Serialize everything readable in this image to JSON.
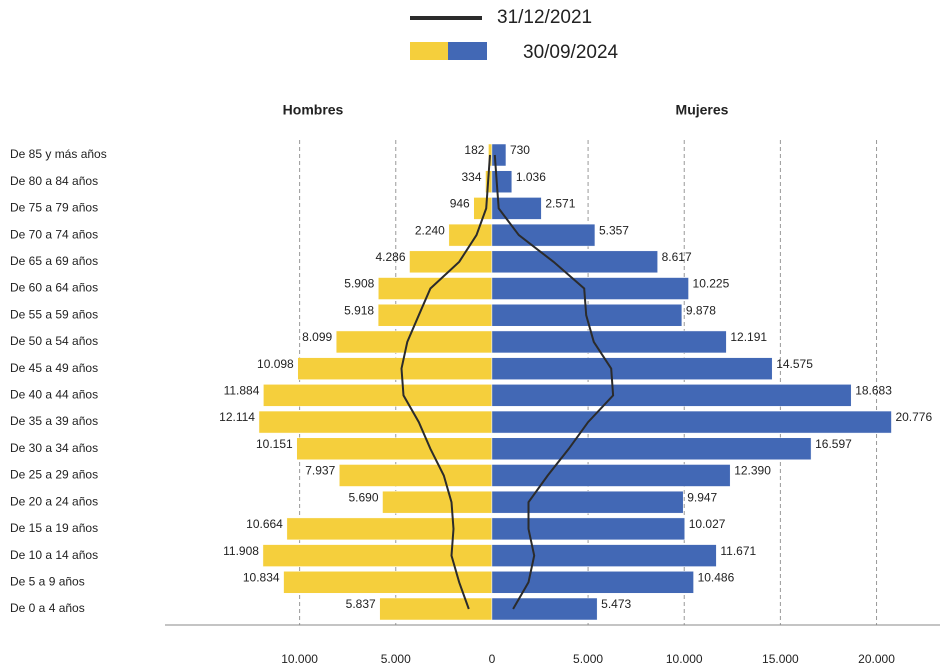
{
  "chart_data": {
    "type": "pyramid",
    "legend_line": "31/12/2021",
    "legend_bars": "30/09/2024",
    "categories": [
      "De 85 y más años",
      "De 80 a 84 años",
      "De 75 a 79 años",
      "De 70 a 74 años",
      "De 65 a 69 años",
      "De 60 a 64 años",
      "De 55 a 59 años",
      "De 50 a 54 años",
      "De 45 a 49 años",
      "De 40 a 44 años",
      "De 35 a 39 años",
      "De 30 a 34 años",
      "De 25 a 29 años",
      "De 20 a 24 años",
      "De 15 a 19 años",
      "De 10 a 14 años",
      "De 5 a 9 años",
      "De 0 a 4 años"
    ],
    "series": [
      {
        "name": "Hombres",
        "side": "left",
        "color": "#f5cf3c",
        "line_color": "#2b2b2b",
        "values": [
          182,
          334,
          946,
          2240,
          4286,
          5908,
          5918,
          8099,
          10098,
          11884,
          12114,
          10151,
          7937,
          5690,
          10664,
          11908,
          10834,
          5837
        ],
        "value_labels": [
          "182",
          "334",
          "946",
          "2.240",
          "4.286",
          "5.908",
          "5.918",
          "8.099",
          "10.098",
          "11.884",
          "12.114",
          "10.151",
          "7.937",
          "5.690",
          "10.664",
          "11.908",
          "10.834",
          "5.837"
        ],
        "line_values": [
          100,
          200,
          300,
          800,
          1700,
          3200,
          3800,
          4400,
          4700,
          4600,
          3800,
          3200,
          2500,
          2100,
          2000,
          2100,
          1700,
          1200
        ]
      },
      {
        "name": "Mujeres",
        "side": "right",
        "color": "#4268b5",
        "line_color": "#2b2b2b",
        "values": [
          730,
          1036,
          2571,
          5357,
          8617,
          10225,
          9878,
          12191,
          14575,
          18683,
          20776,
          16597,
          12390,
          9947,
          10027,
          11671,
          10486,
          5473
        ],
        "value_labels": [
          "730",
          "1.036",
          "2.571",
          "5.357",
          "8.617",
          "10.225",
          "9.878",
          "12.191",
          "14.575",
          "18.683",
          "20.776",
          "16.597",
          "12.390",
          "9.947",
          "10.027",
          "11.671",
          "10.486",
          "5.473"
        ],
        "line_values": [
          150,
          250,
          350,
          1400,
          3200,
          4800,
          4900,
          5300,
          6200,
          6300,
          5000,
          4000,
          2900,
          1900,
          1900,
          2200,
          1900,
          1100
        ]
      }
    ],
    "xlim": [
      -17000,
      23300
    ],
    "xticks": [
      {
        "value": -10000,
        "label": "10.000"
      },
      {
        "value": -5000,
        "label": "5.000"
      },
      0,
      {
        "value": 5000,
        "label": "5.000"
      },
      {
        "value": 10000,
        "label": "10.000"
      },
      {
        "value": 15000,
        "label": "15.000"
      },
      {
        "value": 20000,
        "label": "20.000"
      }
    ],
    "grid": true
  }
}
